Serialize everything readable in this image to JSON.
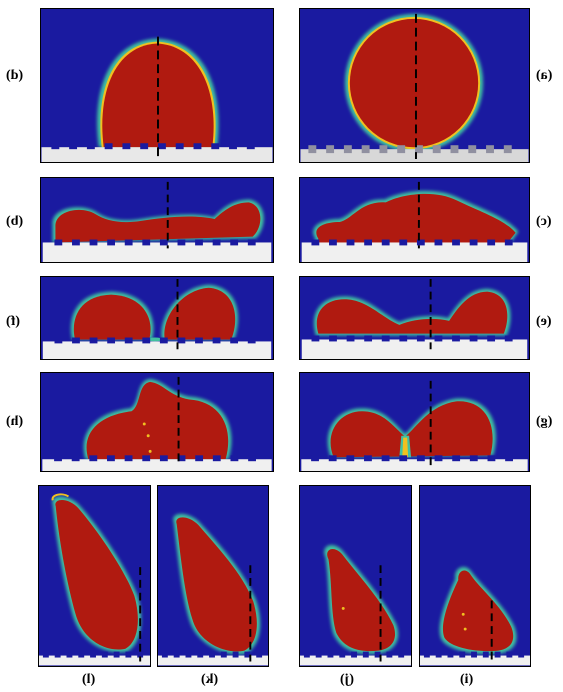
{
  "panel_labels": {
    "a": "(a)",
    "b": "(b)",
    "c": "(c)",
    "d": "(d)",
    "e": "(e)",
    "f": "(f)",
    "g": "(g)",
    "h": "(h)",
    "i": "(i)",
    "j": "(j)",
    "k": "(k)",
    "l": "(l)"
  },
  "colors": {
    "background": "#1a1aa0",
    "droplet": "#b01a10",
    "interface_inner": "#f0c020",
    "interface_outer": "#40c0a0",
    "substrate": "#e8e8e8",
    "pillar": "#ffffff",
    "axis_line": "#000000"
  },
  "labels_mirrored": true
}
